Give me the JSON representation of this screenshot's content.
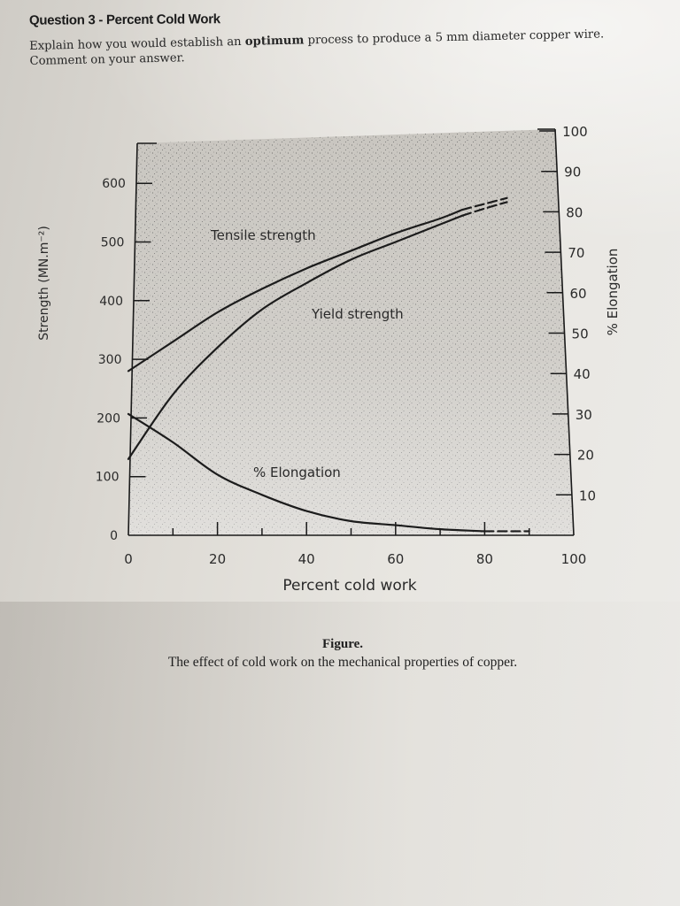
{
  "question": {
    "title": "Question 3 - Percent Cold Work",
    "body_part1": "Explain how you would establish an ",
    "body_bold": "optimum",
    "body_part2": " process to produce a 5 mm diameter copper wire. Comment on your answer."
  },
  "figure": {
    "caption_title": "Figure.",
    "caption_text": "The effect of cold work on the mechanical properties of copper."
  },
  "chart_data": {
    "type": "line",
    "title": "The effect of cold work on the mechanical properties of copper.",
    "xlabel": "Percent cold work",
    "ylabel": "Strength (MN.m⁻²)",
    "y2label": "% Elongation",
    "xlim": [
      0,
      100
    ],
    "ylim": [
      0,
      650
    ],
    "y2lim": [
      0,
      100
    ],
    "x_ticks": [
      "0",
      "20",
      "40",
      "60",
      "80",
      "100"
    ],
    "y_ticks": [
      "0",
      "100",
      "200",
      "300",
      "400",
      "500",
      "600"
    ],
    "y2_ticks": [
      "10",
      "20",
      "30",
      "40",
      "50",
      "60",
      "70",
      "80",
      "90",
      "100"
    ],
    "grid": false,
    "legend": "inline labels",
    "series": [
      {
        "name": "Tensile strength",
        "axis": "left",
        "x": [
          0,
          10,
          20,
          30,
          40,
          50,
          60,
          70,
          75,
          80,
          85
        ],
        "values": [
          280,
          330,
          380,
          420,
          455,
          485,
          515,
          540,
          555,
          565,
          575
        ],
        "dashed_from_x": 77
      },
      {
        "name": "Yield strength",
        "axis": "left",
        "x": [
          0,
          10,
          20,
          30,
          40,
          50,
          60,
          70,
          75,
          80,
          85
        ],
        "values": [
          130,
          240,
          320,
          385,
          430,
          470,
          500,
          530,
          545,
          557,
          568
        ],
        "dashed_from_x": 77
      },
      {
        "name": "% Elongation",
        "axis": "right",
        "x": [
          0,
          10,
          20,
          30,
          40,
          50,
          60,
          70,
          80,
          90
        ],
        "values": [
          30,
          23,
          15,
          10,
          6,
          3.5,
          2.5,
          1.5,
          1,
          1
        ],
        "dashed_from_x": 80
      }
    ],
    "annotations": [
      "Tensile strength",
      "Yield strength",
      "% Elongation"
    ]
  }
}
